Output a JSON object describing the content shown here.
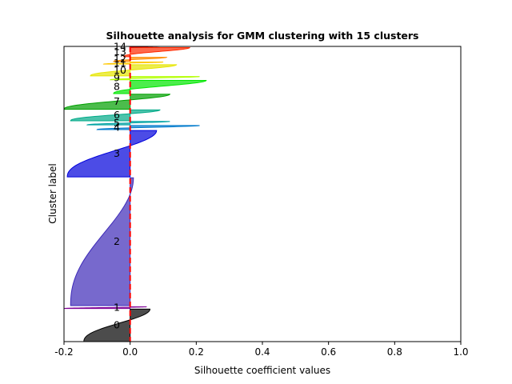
{
  "chart_data": {
    "type": "area",
    "title": "Silhouette analysis for GMM clustering with 15 clusters",
    "xlabel": "Silhouette coefficient values",
    "ylabel": "Cluster label",
    "xlim": [
      -0.2,
      1.0
    ],
    "ylim": [
      0,
      100
    ],
    "xticks": [
      "-0.2",
      "0.0",
      "0.2",
      "0.4",
      "0.6",
      "0.8",
      "1.0"
    ],
    "yticks": [],
    "grid": false,
    "average_silhouette": 0.0,
    "average_line_color": "#ff0000",
    "clusters": [
      {
        "label": "0",
        "color": "#000000",
        "y_start": 0.0,
        "y_end": 11.0,
        "min": -0.14,
        "max": 0.06
      },
      {
        "label": "1",
        "color": "#7f0096",
        "y_start": 11.2,
        "y_end": 11.8,
        "min": -0.2,
        "max": 0.05
      },
      {
        "label": "2",
        "color": "#3d2ab8",
        "y_start": 12.2,
        "y_end": 55.5,
        "min": -0.18,
        "max": 0.01
      },
      {
        "label": "3",
        "color": "#0000dc",
        "y_start": 55.8,
        "y_end": 71.5,
        "min": -0.19,
        "max": 0.08
      },
      {
        "label": "4",
        "color": "#007acc",
        "y_start": 71.8,
        "y_end": 73.2,
        "min": -0.1,
        "max": 0.21
      },
      {
        "label": "5",
        "color": "#00a3a3",
        "y_start": 73.4,
        "y_end": 74.6,
        "min": -0.13,
        "max": 0.12
      },
      {
        "label": "6",
        "color": "#00aa88",
        "y_start": 74.8,
        "y_end": 78.5,
        "min": -0.18,
        "max": 0.09
      },
      {
        "label": "7",
        "color": "#00a000",
        "y_start": 78.7,
        "y_end": 83.8,
        "min": -0.2,
        "max": 0.12
      },
      {
        "label": "8",
        "color": "#00e600",
        "y_start": 84.0,
        "y_end": 88.5,
        "min": -0.05,
        "max": 0.23
      },
      {
        "label": "9",
        "color": "#b3ff00",
        "y_start": 88.7,
        "y_end": 89.8,
        "min": -0.06,
        "max": 0.21
      },
      {
        "label": "10",
        "color": "#e6e600",
        "y_start": 90.0,
        "y_end": 93.8,
        "min": -0.12,
        "max": 0.14
      },
      {
        "label": "11",
        "color": "#ffc800",
        "y_start": 94.0,
        "y_end": 94.7,
        "min": -0.08,
        "max": 0.1
      },
      {
        "label": "12",
        "color": "#ff8c00",
        "y_start": 94.9,
        "y_end": 96.3,
        "min": -0.05,
        "max": 0.11
      },
      {
        "label": "13",
        "color": "#ff2a00",
        "y_start": 96.5,
        "y_end": 99.6,
        "min": -0.02,
        "max": 0.18
      },
      {
        "label": "14",
        "color": "#cc0000",
        "y_start": 99.7,
        "y_end": 100.0,
        "min": 0.0,
        "max": 0.09
      }
    ]
  }
}
